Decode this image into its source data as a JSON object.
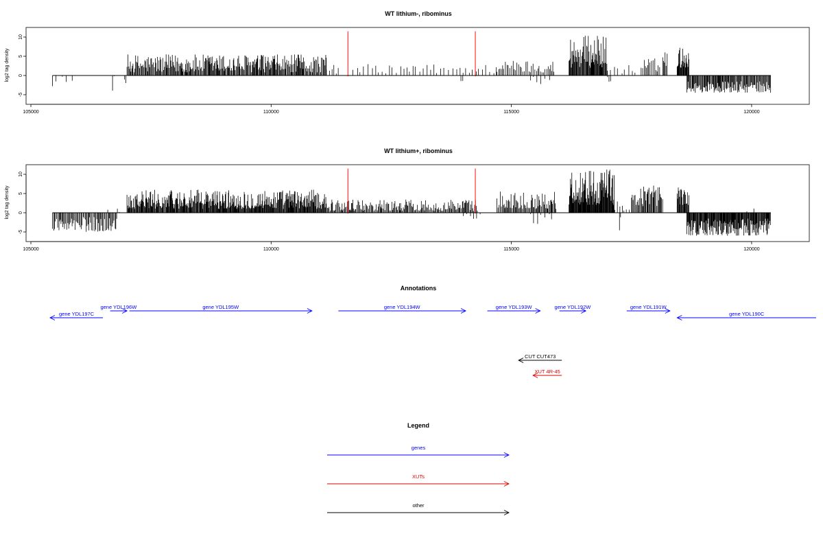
{
  "chart_data": [
    {
      "type": "bar",
      "title": "WT lithium-, ribominus",
      "ylabel": "log2 tag density",
      "xlim": [
        104900,
        121200
      ],
      "ylim": [
        -7.5,
        12.5
      ],
      "x_ticks": [
        105000,
        110000,
        115000,
        120000
      ],
      "y_ticks": [
        -5,
        0,
        5,
        10
      ],
      "bar_color": "#000000",
      "marker_color": "#ff4d4d",
      "markers": [
        111600,
        114250
      ],
      "segments": [
        {
          "start": 105450,
          "end": 106000,
          "lo": -2.8,
          "hi": 0.0,
          "density": 0.012
        },
        {
          "start": 106700,
          "end": 106750,
          "lo": -4.0,
          "hi": 0.0,
          "density": 0.05
        },
        {
          "start": 106950,
          "end": 107000,
          "lo": -2.8,
          "hi": 0.0,
          "density": 0.05
        },
        {
          "start": 107000,
          "end": 111150,
          "lo": 0.8,
          "hi": 5.5,
          "density": 0.09
        },
        {
          "start": 111150,
          "end": 111450,
          "lo": 0.5,
          "hi": 3.0,
          "density": 0.03
        },
        {
          "start": 111700,
          "end": 114700,
          "lo": 0.5,
          "hi": 3.0,
          "density": 0.02
        },
        {
          "start": 113950,
          "end": 114000,
          "lo": -1.8,
          "hi": 0.0,
          "density": 0.05
        },
        {
          "start": 114700,
          "end": 115900,
          "lo": 0.8,
          "hi": 4.0,
          "density": 0.05
        },
        {
          "start": 115400,
          "end": 115800,
          "lo": -2.8,
          "hi": 0.0,
          "density": 0.02
        },
        {
          "start": 116200,
          "end": 117000,
          "lo": 2.0,
          "hi": 10.5,
          "density": 0.12
        },
        {
          "start": 117000,
          "end": 117600,
          "lo": 0.5,
          "hi": 3.0,
          "density": 0.02
        },
        {
          "start": 117000,
          "end": 117100,
          "lo": -2.5,
          "hi": 0.0,
          "density": 0.03
        },
        {
          "start": 117700,
          "end": 118100,
          "lo": 1.0,
          "hi": 4.5,
          "density": 0.05
        },
        {
          "start": 118150,
          "end": 118250,
          "lo": 2.5,
          "hi": 6.5,
          "density": 0.08
        },
        {
          "start": 118450,
          "end": 118700,
          "lo": 2.0,
          "hi": 7.5,
          "density": 0.12
        },
        {
          "start": 118650,
          "end": 120400,
          "lo": -4.5,
          "hi": -1.5,
          "density": 0.09
        }
      ]
    },
    {
      "type": "bar",
      "title": "WT lithium+, ribominus",
      "ylabel": "log2 tag density",
      "xlim": [
        104900,
        121200
      ],
      "ylim": [
        -7.5,
        12.5
      ],
      "x_ticks": [
        105000,
        110000,
        115000,
        120000
      ],
      "y_ticks": [
        -5,
        0,
        5,
        10
      ],
      "bar_color": "#000000",
      "marker_color": "#ff4d4d",
      "markers": [
        111600,
        114250
      ],
      "segments": [
        {
          "start": 105450,
          "end": 106800,
          "lo": -5.0,
          "hi": -1.0,
          "density": 0.07
        },
        {
          "start": 106600,
          "end": 106650,
          "lo": 0.0,
          "hi": 1.2,
          "density": 0.05
        },
        {
          "start": 106800,
          "end": 106850,
          "lo": 0.0,
          "hi": 2.0,
          "density": 0.05
        },
        {
          "start": 107000,
          "end": 111150,
          "lo": 1.0,
          "hi": 6.0,
          "density": 0.12
        },
        {
          "start": 111150,
          "end": 114300,
          "lo": 0.5,
          "hi": 3.5,
          "density": 0.08
        },
        {
          "start": 114000,
          "end": 114400,
          "lo": -1.8,
          "hi": 0.0,
          "density": 0.02
        },
        {
          "start": 114700,
          "end": 115950,
          "lo": 1.0,
          "hi": 5.5,
          "density": 0.08
        },
        {
          "start": 115400,
          "end": 115900,
          "lo": -3.0,
          "hi": 0.0,
          "density": 0.02
        },
        {
          "start": 116200,
          "end": 117150,
          "lo": 2.0,
          "hi": 11.5,
          "density": 0.14
        },
        {
          "start": 117150,
          "end": 117500,
          "lo": 0.5,
          "hi": 3.0,
          "density": 0.03
        },
        {
          "start": 117250,
          "end": 117300,
          "lo": -5.2,
          "hi": 0.0,
          "density": 0.05
        },
        {
          "start": 117500,
          "end": 118150,
          "lo": 1.5,
          "hi": 7.5,
          "density": 0.08
        },
        {
          "start": 118450,
          "end": 118700,
          "lo": 2.0,
          "hi": 7.0,
          "density": 0.12
        },
        {
          "start": 118650,
          "end": 120400,
          "lo": -6.0,
          "hi": -1.5,
          "density": 0.12
        },
        {
          "start": 119900,
          "end": 120100,
          "lo": 0.0,
          "hi": 1.8,
          "density": 0.02
        }
      ]
    }
  ],
  "annotations": {
    "title": "Annotations",
    "items": [
      {
        "label": "gene YDL197C",
        "start": 105400,
        "end": 106500,
        "strand": "-",
        "row": 1,
        "type": "gene"
      },
      {
        "label": "gene YDL196W",
        "start": 106650,
        "end": 107000,
        "strand": "+",
        "row": 0,
        "type": "gene"
      },
      {
        "label": "gene YDL195W",
        "start": 107050,
        "end": 110850,
        "strand": "+",
        "row": 0,
        "type": "gene"
      },
      {
        "label": "gene YDL194W",
        "start": 111400,
        "end": 114050,
        "strand": "+",
        "row": 0,
        "type": "gene"
      },
      {
        "label": "gene YDL193W",
        "start": 114500,
        "end": 115600,
        "strand": "+",
        "row": 0,
        "type": "gene"
      },
      {
        "label": "gene YDL192W",
        "start": 116000,
        "end": 116550,
        "strand": "+",
        "row": 0,
        "type": "gene"
      },
      {
        "label": "gene YDL191W",
        "start": 117400,
        "end": 118300,
        "strand": "+",
        "row": 0,
        "type": "gene"
      },
      {
        "label": "gene YDL190C",
        "start": 118450,
        "end": 121350,
        "strand": "-",
        "row": 1,
        "type": "gene"
      },
      {
        "label": "CUT CUT473",
        "start": 115150,
        "end": 116050,
        "strand": "-",
        "row": 2,
        "type": "other"
      },
      {
        "label": "XUT 4R-45",
        "start": 115450,
        "end": 116050,
        "strand": "-",
        "row": 3,
        "type": "xut"
      }
    ]
  },
  "legend": {
    "title": "Legend",
    "items": [
      {
        "label": "genes",
        "type": "gene"
      },
      {
        "label": "XUTs",
        "type": "xut"
      },
      {
        "label": "other",
        "type": "other"
      }
    ]
  },
  "colors": {
    "gene": "#0000ff",
    "xut": "#dd0000",
    "other": "#000000"
  }
}
